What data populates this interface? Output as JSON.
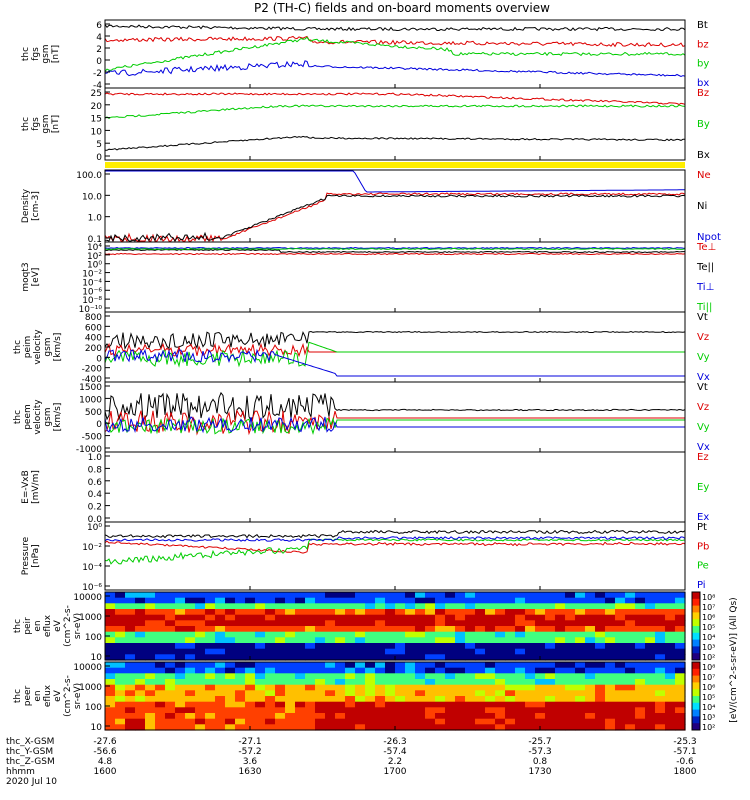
{
  "title": "P2 (TH-C) fields and on-board moments overview",
  "chart_data": {
    "type": "line",
    "x_ticks": [
      "1600",
      "1630",
      "1700",
      "1730",
      "1800"
    ],
    "orbit_labels": [
      "thc_X-GSM",
      "thc_Y-GSM",
      "thc_Z-GSM",
      "hhmm",
      "2020 Jul 10"
    ],
    "orbit_values": [
      [
        "-27.6",
        "-27.1",
        "-26.3",
        "-25.7",
        "-25.3"
      ],
      [
        "-56.6",
        "-57.2",
        "-57.4",
        "-57.3",
        "-57.1"
      ],
      [
        "4.8",
        "3.6",
        "2.2",
        "0.8",
        "-0.6"
      ]
    ],
    "panels": [
      {
        "ylabel": [
          "thc",
          "fgs",
          "gsm",
          "[nT]"
        ],
        "ticks": [
          "6",
          "4",
          "2",
          "0",
          "-2",
          "-4"
        ],
        "legend": [
          {
            "name": "Bt",
            "color": "#000000"
          },
          {
            "name": "bz",
            "color": "#dd0000"
          },
          {
            "name": "by",
            "color": "#00cc00"
          },
          {
            "name": "bx",
            "color": "#0000dd"
          }
        ]
      },
      {
        "ylabel": [
          "thc",
          "fgs",
          "gsm",
          "[nT]"
        ],
        "ticks": [
          "25",
          "20",
          "15",
          "10",
          "5",
          "0"
        ],
        "legend": [
          {
            "name": "Bz",
            "color": "#dd0000"
          },
          {
            "name": "By",
            "color": "#00cc00"
          },
          {
            "name": "Bx",
            "color": "#000000"
          }
        ]
      },
      {
        "ylabel": [
          "Density",
          "[cm-3]"
        ],
        "ticks": [
          "100.0",
          "10.0",
          "1.0",
          "0.1"
        ],
        "legend": [
          {
            "name": "Ne",
            "color": "#dd0000"
          },
          {
            "name": "Ni",
            "color": "#000000"
          },
          {
            "name": "Npot",
            "color": "#0000dd"
          }
        ]
      },
      {
        "ylabel": [
          "moqt3",
          "[eV]"
        ],
        "ticks": [
          "10⁴",
          "10²",
          "10⁰",
          "10⁻²",
          "10⁻⁴",
          "10⁻⁶",
          "10⁻⁸",
          "10⁻¹⁰"
        ],
        "legend": [
          {
            "name": "Te⊥",
            "color": "#dd0000"
          },
          {
            "name": "Te||",
            "color": "#000000"
          },
          {
            "name": "Ti⊥",
            "color": "#0000dd"
          },
          {
            "name": "Ti||",
            "color": "#00cc00"
          }
        ]
      },
      {
        "ylabel": [
          "thc",
          "peim",
          "velocity",
          "gsm",
          "[km/s]"
        ],
        "ticks": [
          "800",
          "600",
          "400",
          "200",
          "0",
          "-200",
          "-400"
        ],
        "legend": [
          {
            "name": "Vt",
            "color": "#000000"
          },
          {
            "name": "Vz",
            "color": "#dd0000"
          },
          {
            "name": "Vy",
            "color": "#00cc00"
          },
          {
            "name": "Vx",
            "color": "#0000dd"
          }
        ]
      },
      {
        "ylabel": [
          "thc",
          "peem",
          "velocity",
          "gsm",
          "[km/s]"
        ],
        "ticks": [
          "1500",
          "1000",
          "500",
          "0",
          "-500",
          "-1000"
        ],
        "legend": [
          {
            "name": "Vt",
            "color": "#000000"
          },
          {
            "name": "Vz",
            "color": "#dd0000"
          },
          {
            "name": "Vy",
            "color": "#00cc00"
          },
          {
            "name": "Vx",
            "color": "#0000dd"
          }
        ]
      },
      {
        "ylabel": [
          "E=-VxB",
          "[mV/m]"
        ],
        "ticks": [
          "1.0",
          "0.8",
          "0.6",
          "0.4",
          "0.2",
          "0.0"
        ],
        "legend": [
          {
            "name": "Ez",
            "color": "#dd0000"
          },
          {
            "name": "Ey",
            "color": "#00cc00"
          },
          {
            "name": "Ex",
            "color": "#0000dd"
          }
        ]
      },
      {
        "ylabel": [
          "Pressure",
          "[nPa]"
        ],
        "ticks": [
          "10⁰",
          "10⁻²",
          "10⁻⁴",
          "10⁻⁶"
        ],
        "legend": [
          {
            "name": "Pt",
            "color": "#000000"
          },
          {
            "name": "Pb",
            "color": "#dd0000"
          },
          {
            "name": "Pe",
            "color": "#00cc00"
          },
          {
            "name": "Pi",
            "color": "#0000dd"
          }
        ]
      },
      {
        "ylabel": [
          "thc",
          "peir",
          "en",
          "eflux",
          "eV",
          "(cm^2-s-",
          "sr-eV)"
        ],
        "ticks": [
          "10000",
          "1000",
          "100",
          "10"
        ],
        "legend": []
      },
      {
        "ylabel": [
          "thc",
          "peer",
          "en",
          "eflux",
          "eV",
          "(cm^2-s-",
          "sr-eV)"
        ],
        "ticks": [
          "10000",
          "1000",
          "100",
          "10"
        ],
        "legend": []
      }
    ],
    "colorbar": {
      "label": "[eV/(cm^2-s-sr-eV)] (All Qs)",
      "ticks_top": [
        "10⁸",
        "10⁷",
        "10⁶",
        "10⁵",
        "10⁴",
        "10³",
        "10²"
      ],
      "ticks_bottom": [
        "10⁸",
        "10⁷",
        "10⁶",
        "10⁵",
        "10⁴",
        "10³",
        "10²"
      ]
    }
  }
}
